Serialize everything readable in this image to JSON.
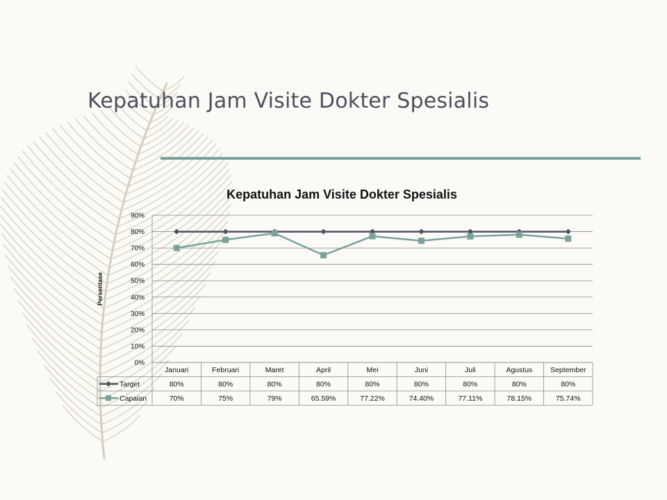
{
  "slide": {
    "title": "Kepatuhan Jam Visite Dokter Spesialis"
  },
  "colors": {
    "background": "#fbfaf6",
    "title_text": "#4f4f5d",
    "accent_rule": "#7aa29a",
    "target_series": "#4f505e",
    "capaian_series": "#7aa29a",
    "feather": "#d3d0bf"
  },
  "decoration": {
    "feather_icon": "feather-icon"
  },
  "chart_data": {
    "type": "line",
    "title": "Kepatuhan Jam Visite Dokter Spesialis",
    "xlabel": "",
    "ylabel": "Persentase",
    "ylim": [
      0,
      90
    ],
    "yticks": [
      "0%",
      "10%",
      "20%",
      "30%",
      "40%",
      "50%",
      "60%",
      "70%",
      "80%",
      "90%"
    ],
    "grid": true,
    "legend": "data-table",
    "categories": [
      "Januari",
      "Februari",
      "Maret",
      "April",
      "Mei",
      "Juni",
      "Juli",
      "Agustus",
      "September"
    ],
    "series": [
      {
        "name": "Target",
        "values": [
          80,
          80,
          80,
          80,
          80,
          80,
          80,
          80,
          80
        ],
        "labels": [
          "80%",
          "80%",
          "80%",
          "80%",
          "80%",
          "80%",
          "80%",
          "80%",
          "80%"
        ],
        "marker": "diamond"
      },
      {
        "name": "Capaian",
        "values": [
          70,
          75,
          79,
          65.59,
          77.22,
          74.4,
          77.11,
          78.15,
          75.74
        ],
        "labels": [
          "70%",
          "75%",
          "79%",
          "65.59%",
          "77.22%",
          "74.40%",
          "77.11%",
          "78.15%",
          "75.74%"
        ],
        "marker": "square"
      }
    ]
  }
}
